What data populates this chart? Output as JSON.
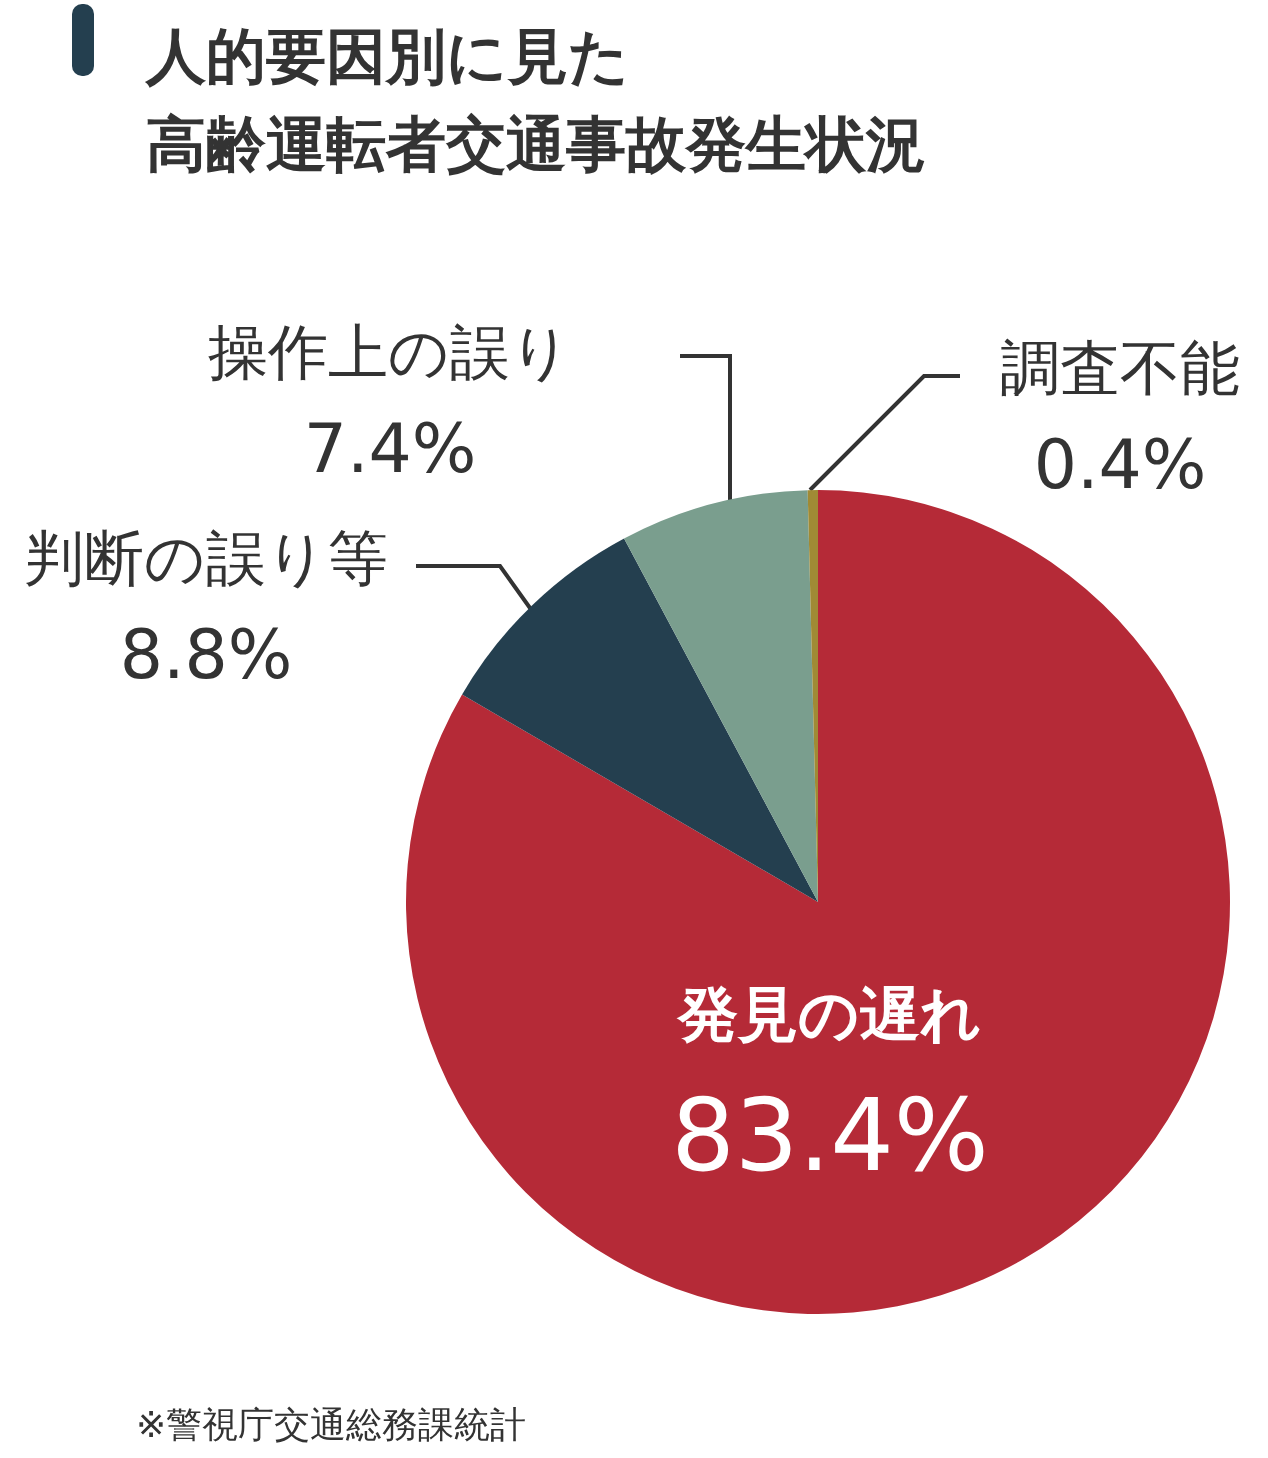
{
  "chart_data": {
    "type": "pie",
    "title": "人的要因別に見た",
    "subtitle": "高齢運転者交通事故発生状況",
    "categories": [
      "発見の遅れ",
      "判断の誤り等",
      "操作上の誤り",
      "調査不能"
    ],
    "values": [
      83.4,
      8.8,
      7.4,
      0.4
    ],
    "value_labels": [
      "83.4%",
      "8.8%",
      "7.4%",
      "0.4%"
    ],
    "colors": [
      "#b52a37",
      "#243f4f",
      "#7a9e8e",
      "#a08a35"
    ],
    "annotations": [
      "※警視庁交通総務課統計"
    ]
  }
}
